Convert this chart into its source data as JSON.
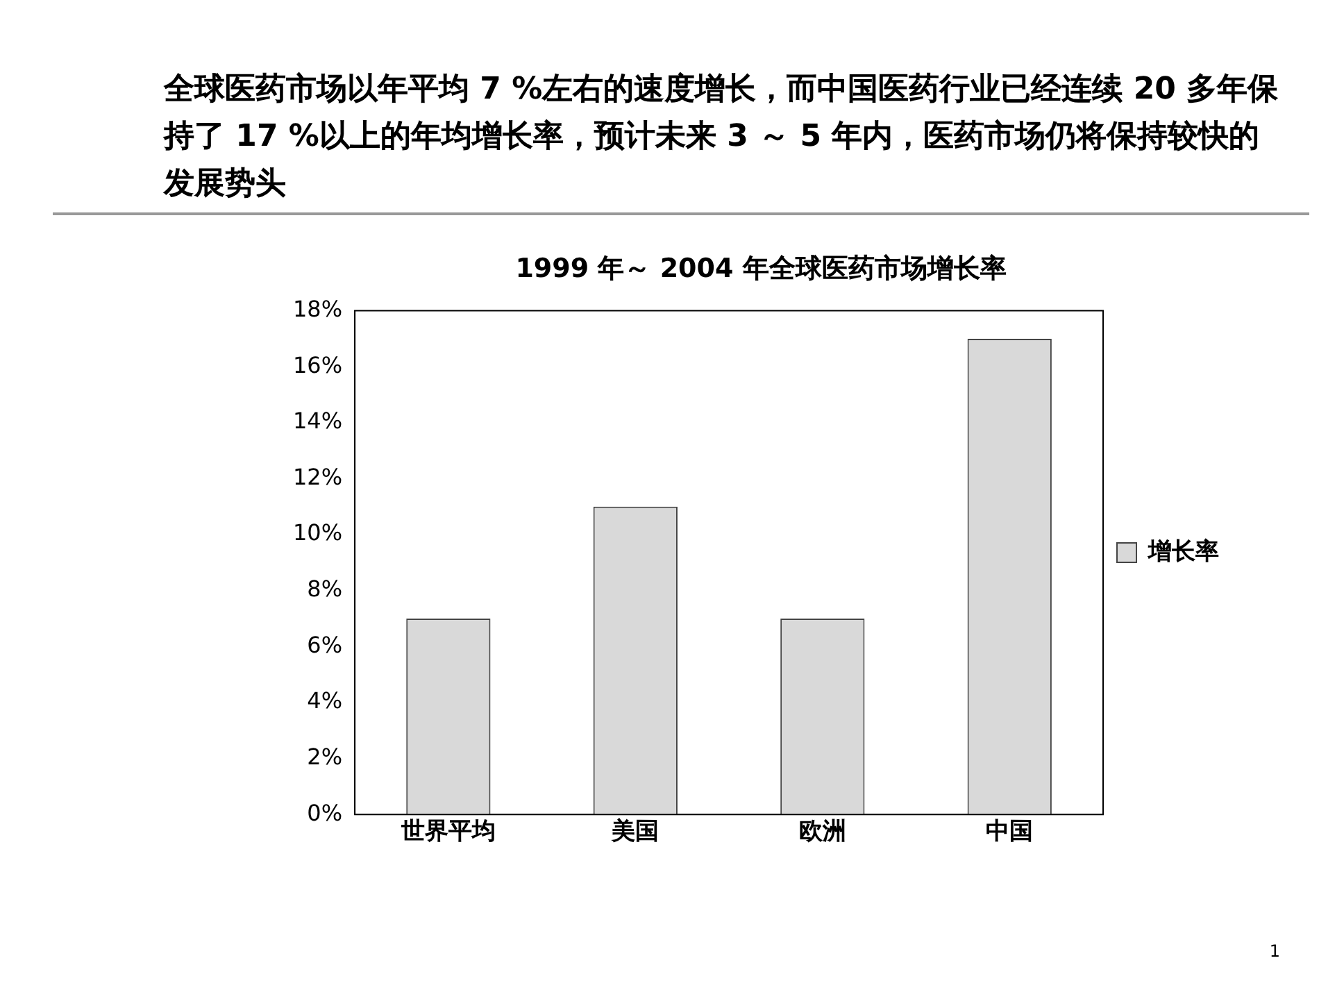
{
  "chart_data": {
    "type": "bar",
    "title": "全球医药市场以年平均 7 %左右的速度增长，而中国医药行业已经连续 20 多年保持了 17 %以上的年均增长率，预计未来 3 ～ 5 年内，医药市场仍将保持较快的发展势头",
    "subtitle": "1999 年～ 2004 年全球医药市场增长率",
    "categories": [
      "世界平均",
      "美国",
      "欧洲",
      "中国"
    ],
    "series": [
      {
        "name": "增长率",
        "color": "#d9d9d9",
        "values": [
          7,
          11,
          7,
          17
        ]
      }
    ],
    "ylim": [
      0,
      18
    ],
    "yticks": [
      {
        "value": 0,
        "label": "0%"
      },
      {
        "value": 2,
        "label": "2%"
      },
      {
        "value": 4,
        "label": "4%"
      },
      {
        "value": 6,
        "label": "6%"
      },
      {
        "value": 8,
        "label": "8%"
      },
      {
        "value": 10,
        "label": "10%"
      },
      {
        "value": 12,
        "label": "12%"
      },
      {
        "value": 14,
        "label": "14%"
      },
      {
        "value": 16,
        "label": "16%"
      },
      {
        "value": 18,
        "label": "18%"
      }
    ],
    "grid": false,
    "legend": "right",
    "annotations": [
      "1"
    ]
  }
}
